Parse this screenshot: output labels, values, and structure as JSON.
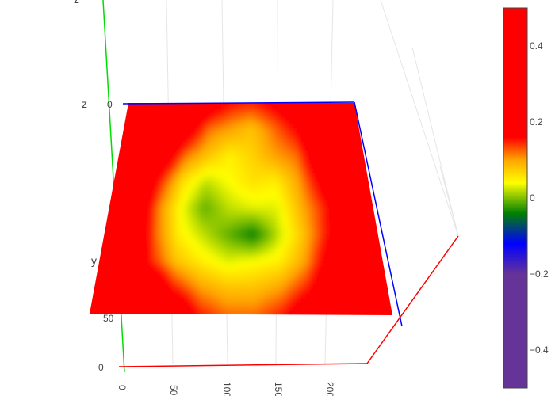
{
  "chart_data": {
    "type": "surface",
    "axes": {
      "x": {
        "title": "",
        "ticks": [
          "0",
          "50",
          "100",
          "150",
          "200"
        ],
        "color": "#ff0000"
      },
      "y": {
        "title": "y",
        "ticks": [
          "0",
          "50"
        ],
        "color": "#00cc00"
      },
      "z": {
        "title": "z",
        "ticks": [
          "0"
        ],
        "color": "#0000ff"
      }
    },
    "surface": {
      "note_rows": "rows run from the far (top) edge to the near (bottom) edge; columns run left to right",
      "values": [
        [
          0.5,
          0.45,
          0.4,
          0.3,
          0.2,
          0.16,
          0.15,
          0.17,
          0.2,
          0.27,
          0.4,
          0.5
        ],
        [
          0.5,
          0.45,
          0.35,
          0.2,
          0.12,
          0.1,
          0.08,
          0.12,
          0.16,
          0.25,
          0.4,
          0.5
        ],
        [
          0.5,
          0.4,
          0.22,
          0.12,
          0.08,
          0.05,
          0.07,
          0.1,
          0.12,
          0.22,
          0.4,
          0.5
        ],
        [
          0.5,
          0.35,
          0.15,
          0.06,
          0.02,
          0.04,
          0.06,
          0.05,
          0.1,
          0.18,
          0.35,
          0.5
        ],
        [
          0.5,
          0.32,
          0.12,
          0.04,
          -0.01,
          0.02,
          0.03,
          0.03,
          0.09,
          0.15,
          0.3,
          0.5
        ],
        [
          0.5,
          0.35,
          0.13,
          0.05,
          0.02,
          -0.01,
          -0.04,
          0.02,
          0.08,
          0.16,
          0.35,
          0.5
        ],
        [
          0.5,
          0.4,
          0.15,
          0.08,
          0.05,
          0.03,
          0.04,
          0.05,
          0.1,
          0.2,
          0.4,
          0.5
        ],
        [
          0.5,
          0.45,
          0.25,
          0.15,
          0.1,
          0.08,
          0.08,
          0.1,
          0.15,
          0.25,
          0.45,
          0.5
        ],
        [
          0.5,
          0.5,
          0.4,
          0.25,
          0.15,
          0.12,
          0.12,
          0.15,
          0.22,
          0.35,
          0.5,
          0.5
        ]
      ]
    },
    "colorscale": [
      [
        0.0,
        "#663399"
      ],
      [
        0.3,
        "#663399"
      ],
      [
        0.38,
        "#0000ff"
      ],
      [
        0.46,
        "#008000"
      ],
      [
        0.54,
        "#ffff00"
      ],
      [
        0.6,
        "#ffa500"
      ],
      [
        0.66,
        "#ff0000"
      ],
      [
        1.0,
        "#ff0000"
      ]
    ],
    "colorbar": {
      "range": [
        -0.5,
        0.5
      ],
      "ticks": [
        0.4,
        0.2,
        0,
        -0.2,
        -0.4
      ],
      "tick_labels": [
        "0.4",
        "0.2",
        "0",
        "−0.2",
        "−0.4"
      ]
    }
  }
}
